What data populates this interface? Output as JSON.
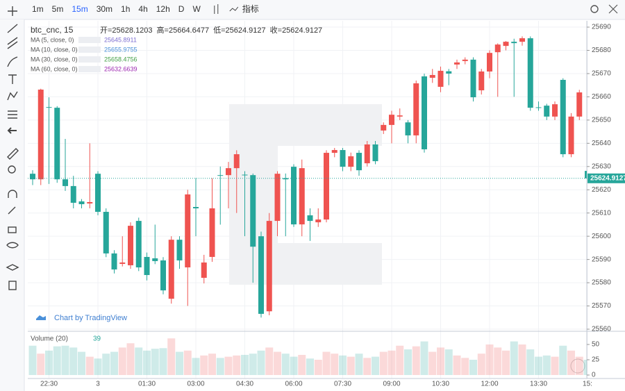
{
  "toolbar": {
    "intervals": [
      "1m",
      "5m",
      "15m",
      "30m",
      "1h",
      "4h",
      "12h",
      "D",
      "W"
    ],
    "indicators": "指标"
  },
  "chart_data": {
    "type": "candlestick",
    "title": "btc_cnc, 15",
    "ohlc_labels": [
      "开=25628.1203",
      "高=25664.6477",
      "低=25624.9127",
      "收=25624.9127"
    ],
    "categories": [
      null,
      null,
      "22:30",
      null,
      null,
      null,
      null,
      null,
      "3",
      null,
      null,
      null,
      null,
      null,
      "01:30",
      null,
      null,
      null,
      null,
      null,
      "03:00",
      null,
      null,
      null,
      null,
      null,
      "04:30",
      null,
      null,
      null,
      null,
      null,
      "06:00",
      null,
      null,
      null,
      null,
      null,
      "07:30",
      null,
      null,
      null,
      null,
      null,
      "09:00",
      null,
      null,
      null,
      null,
      null,
      "10:30",
      null,
      null,
      null,
      null,
      null,
      "12:00",
      null,
      null,
      null,
      null,
      null,
      "13:30",
      null,
      null,
      null,
      null,
      null,
      "15:"
    ],
    "open": [
      25626.9,
      25624.5,
      25655.6,
      25655.3,
      25624.5,
      25621.6,
      25615.0,
      25614.1,
      25626.9,
      25610.5,
      25592.6,
      25588.1,
      25587.5,
      25606.6,
      25591.1,
      25590.5,
      25589.6,
      25573.1,
      25598.5,
      25586.6,
      25612.6,
      25582.1,
      25591.1,
      25626.3,
      25626.3,
      25629.3,
      25626.5,
      25626.3,
      25600.0,
      25567.7,
      25606.6,
      25625.0,
      25629.9,
      25605.1,
      25609.0,
      25606.0,
      25607.2,
      25635.9,
      25637.1,
      25629.9,
      25635.9,
      25631.4,
      25639.5,
      25645.5,
      25647.9,
      25651.5,
      25649.0,
      25643.4,
      25668.8,
      25668.2,
      25664.3,
      25671.0,
      25673.9,
      25675.4,
      25676.0,
      25662.8,
      25670.9,
      25679.2,
      25681.9,
      25683.7,
      25683.7,
      25685.2,
      25655.5,
      25656.2,
      25651.5,
      25667.3,
      25635.3,
      25651.5,
      25628.1203
    ],
    "high": [
      25628.4,
      25663.5,
      25659.8,
      25656.0,
      25641.9,
      25626,
      25616,
      25640,
      25628,
      25612,
      25594,
      25600,
      25606,
      25608,
      25593,
      25605,
      25591,
      25600,
      25600,
      25620,
      25625,
      25592,
      25625,
      25630,
      25632,
      25637,
      25628,
      25627,
      25602,
      25610,
      25628,
      25627,
      25631,
      25633,
      25612,
      25612,
      25637,
      25638,
      25638,
      25636,
      25637,
      25641,
      25641,
      25649,
      25654,
      25655,
      25650,
      25667,
      25670,
      25672,
      25673,
      25672,
      25676,
      25677,
      25677,
      25672,
      25680,
      25683,
      25684,
      25685,
      25686,
      25686,
      25658,
      25657,
      25658,
      25668,
      25653,
      25663,
      25664.6477
    ],
    "low": [
      25622.0,
      25622.0,
      25622.5,
      25623.0,
      25619.5,
      25612,
      25612,
      25612,
      25609.0,
      25591,
      25584,
      25587,
      25586,
      25585,
      25581,
      25588,
      25575,
      25571,
      25586,
      25570,
      25600,
      25579.7,
      25589,
      25605,
      25612,
      25610,
      25600,
      25580,
      25565,
      25566,
      25600,
      25600,
      25604,
      25600,
      25598,
      25604,
      25606,
      25634,
      25628,
      25628,
      25626,
      25630,
      25631,
      25644,
      25640,
      25650,
      25640,
      25640,
      25636,
      25666,
      25662,
      25665,
      25672,
      25674,
      25658,
      25661,
      25668,
      25660,
      25680,
      25660,
      25682,
      25654,
      25654,
      25650,
      25650,
      25634,
      25634,
      25650,
      25624.9127
    ],
    "close": [
      25624.5,
      25663.1,
      25655.3,
      25624.5,
      25621.6,
      25614.4,
      25613.8,
      25614.7,
      25610.5,
      25592.6,
      25585.7,
      25588.7,
      25604.5,
      25586.6,
      25583.3,
      25589.3,
      25576.7,
      25598.5,
      25589.6,
      25618.0,
      25612.0,
      25588.7,
      25612.0,
      25626.0,
      25629.3,
      25635.3,
      25626.3,
      25595.5,
      25566.6,
      25606.6,
      25626.9,
      25624.5,
      25605.1,
      25629.3,
      25606.6,
      25607.2,
      25635.9,
      25637.1,
      25629.9,
      25634.4,
      25628.4,
      25639.5,
      25632.3,
      25647.9,
      25652.3,
      25652.0,
      25643.4,
      25665.8,
      25637.4,
      25669.4,
      25671.2,
      25670.0,
      25674.8,
      25676.0,
      25659.8,
      25670.9,
      25678.9,
      25682.5,
      25683.7,
      25683.1,
      25685.2,
      25655.3,
      25655.3,
      25651.5,
      25656.8,
      25635.3,
      25651.5,
      25661.9,
      25624.9127
    ],
    "up_color": "#ef5350",
    "down_color": "#26a69a",
    "ylim": [
      25559.7,
      25692.7
    ],
    "yticks": [
      25560,
      25570,
      25580,
      25590,
      25600,
      25610,
      25620,
      25630,
      25640,
      25650,
      25660,
      25670,
      25680,
      25690
    ],
    "grid": true,
    "last_price": 25624.9127,
    "indicators": [
      {
        "name": "MA (5, close, 0)",
        "value": 25645.8911,
        "color": "#7e6fd1"
      },
      {
        "name": "MA (10, close, 0)",
        "value": 25655.9755,
        "color": "#4a90d9"
      },
      {
        "name": "MA (30, close, 0)",
        "value": 25658.4756,
        "color": "#43a047"
      },
      {
        "name": "MA (60, close, 0)",
        "value": 25632.6639,
        "color": "#9c27b0"
      }
    ],
    "volume": {
      "title": "Volume (20)",
      "last": 39,
      "values": [
        48,
        35,
        40,
        47,
        48,
        45,
        38,
        30,
        27,
        35,
        38,
        45,
        52,
        45,
        40,
        43,
        44,
        60,
        38,
        40,
        28,
        32,
        35,
        28,
        30,
        32,
        33,
        35,
        40,
        45,
        38,
        35,
        30,
        33,
        27,
        25,
        38,
        35,
        32,
        30,
        35,
        28,
        30,
        38,
        40,
        48,
        42,
        47,
        55,
        38,
        45,
        42,
        32,
        28,
        25,
        35,
        50,
        45,
        40,
        55,
        50,
        42,
        30,
        32,
        30,
        48,
        40,
        30,
        25
      ],
      "ylim": [
        0,
        68.2
      ],
      "yticks": [
        0,
        25,
        50
      ]
    },
    "attribution": "Chart by TradingView"
  }
}
